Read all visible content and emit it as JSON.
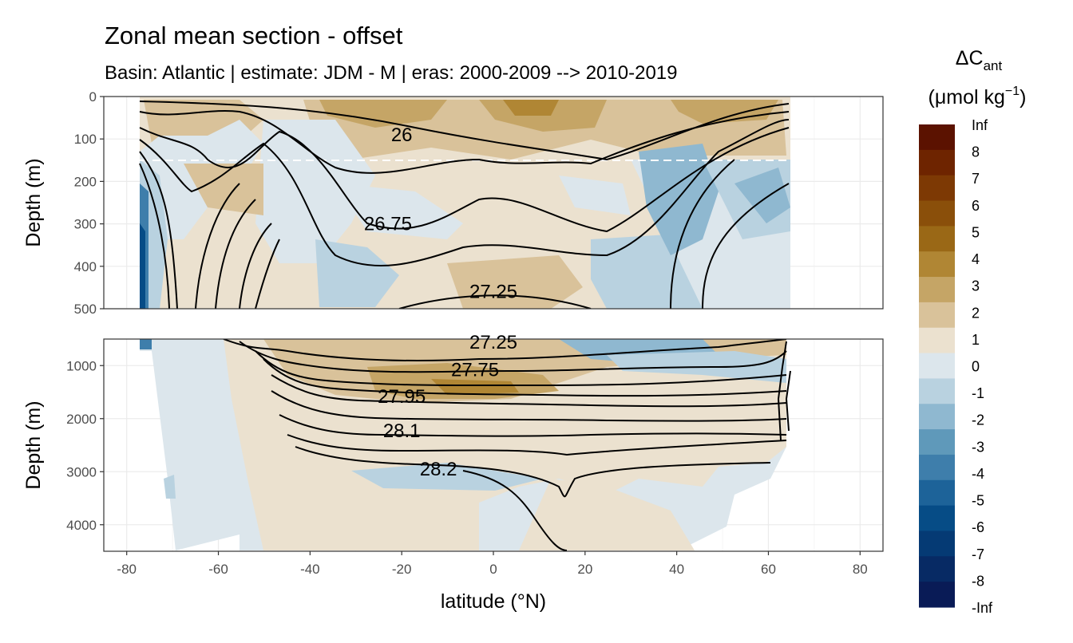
{
  "chart_data": {
    "type": "heatmap",
    "title": "Zonal mean section - offset",
    "subtitle": "Basin: Atlantic | estimate: JDM - M | eras: 2000-2009 --> 2010-2019",
    "xlabel": "latitude (°N)",
    "ylabel": "Depth (m)",
    "xlim": [
      -85,
      85
    ],
    "x_ticks": [
      -80,
      -60,
      -40,
      -20,
      0,
      20,
      40,
      60,
      80
    ],
    "panels": [
      {
        "name": "upper",
        "ylim": [
          0,
          500
        ],
        "y_ticks": [
          0,
          100,
          200,
          300,
          400,
          500
        ]
      },
      {
        "name": "lower",
        "ylim": [
          500,
          4500
        ],
        "y_ticks": [
          1000,
          2000,
          3000,
          4000
        ]
      }
    ],
    "reference_line_depth": 150,
    "legend": {
      "title": "ΔC",
      "title_sub": "ant",
      "unit": "(μmol kg",
      "unit_sup": "−1",
      "unit_close": ")",
      "placement": "right",
      "labels": [
        "Inf",
        "8",
        "7",
        "6",
        "5",
        "4",
        "3",
        "2",
        "1",
        "0",
        "-1",
        "-2",
        "-3",
        "-4",
        "-5",
        "-6",
        "-7",
        "-8",
        "-Inf"
      ],
      "colors": [
        "#5b1200",
        "#6e2400",
        "#7d3904",
        "#8a4f0a",
        "#9a6816",
        "#b08634",
        "#c5a566",
        "#d9c29a",
        "#ebe1cf",
        "#dce6ec",
        "#b9d2e0",
        "#8fb8d0",
        "#5f99ba",
        "#3e7eab",
        "#1d6399",
        "#064c86",
        "#053a74",
        "#072a64",
        "#091b56"
      ]
    },
    "contours": [
      {
        "level": "26",
        "label": "26",
        "label_at": [
          -20,
          90
        ]
      },
      {
        "level": "26.75",
        "label": "26.75",
        "label_at": [
          -23,
          300
        ]
      },
      {
        "level": "27.25",
        "label": "27.25",
        "label_at": [
          0,
          460
        ]
      },
      {
        "level": "27.25",
        "label": "27.25",
        "label_at": [
          0,
          500
        ]
      },
      {
        "level": "27.75",
        "label": "27.75",
        "label_at": [
          -4,
          1080
        ]
      },
      {
        "level": "27.95",
        "label": "27.95",
        "label_at": [
          -20,
          1580
        ]
      },
      {
        "level": "28.1",
        "label": "28.1",
        "label_at": [
          -20,
          2230
        ]
      },
      {
        "level": "28.2",
        "label": "28.2",
        "label_at": [
          -12,
          2950
        ]
      }
    ]
  }
}
